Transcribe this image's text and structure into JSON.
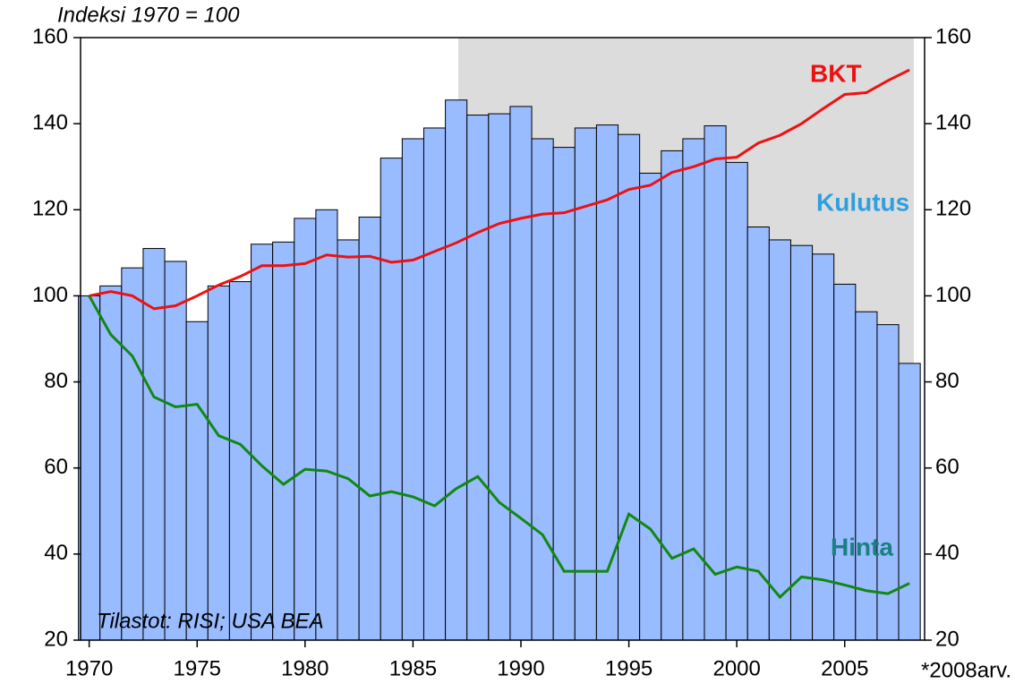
{
  "chart_data": {
    "type": "combo",
    "title": "Indeksi 1970 = 100",
    "source": "Tilastot: RISI; USA BEA",
    "x_note": "*2008arv.",
    "x": [
      1970,
      1971,
      1972,
      1973,
      1974,
      1975,
      1976,
      1977,
      1978,
      1979,
      1980,
      1981,
      1982,
      1983,
      1984,
      1985,
      1986,
      1987,
      1988,
      1989,
      1990,
      1991,
      1992,
      1993,
      1994,
      1995,
      1996,
      1997,
      1998,
      1999,
      2000,
      2001,
      2002,
      2003,
      2004,
      2005,
      2006,
      2007,
      2008
    ],
    "series": [
      {
        "name": "Kulutus",
        "type": "bar",
        "color": "#99bbff",
        "label_color": "#2ea0e0",
        "values": [
          100,
          102.3,
          106.5,
          111,
          108,
          94,
          102.3,
          103.3,
          112,
          112.5,
          118,
          120,
          113,
          118.3,
          132,
          136.5,
          139,
          145.5,
          142,
          142.3,
          144,
          136.5,
          134.5,
          139,
          139.7,
          137.5,
          128.5,
          133.7,
          136.5,
          139.5,
          131,
          116,
          113,
          111.7,
          109.7,
          102.7,
          96.3,
          93.3,
          84.3
        ]
      },
      {
        "name": "BKT",
        "type": "line",
        "color": "#ee1111",
        "label_color": "#ee1111",
        "values": [
          100,
          101,
          100,
          97,
          97.7,
          100,
          102.5,
          104.5,
          107,
          107,
          107.5,
          109.5,
          109,
          109.2,
          107.8,
          108.3,
          110.3,
          112.3,
          114.7,
          116.8,
          118,
          119,
          119.3,
          120.8,
          122.3,
          124.7,
          125.7,
          128.7,
          130,
          131.8,
          132.2,
          135.5,
          137.3,
          140,
          143.5,
          146.8,
          147.2,
          150,
          152.5
        ]
      },
      {
        "name": "Hinta",
        "type": "line",
        "color": "#118811",
        "label_color": "#1a8080",
        "values": [
          100,
          91,
          86,
          76.5,
          74.2,
          74.8,
          67.5,
          65.5,
          60.5,
          56.2,
          59.7,
          59.3,
          57.5,
          53.5,
          54.5,
          53.3,
          51.2,
          55.2,
          58,
          52,
          48.3,
          44.5,
          36,
          36,
          36,
          49.3,
          45.8,
          39,
          41.2,
          35.3,
          37,
          36,
          30,
          34.7,
          34,
          32.8,
          31.5,
          30.8,
          33.2
        ]
      }
    ],
    "shaded_range": [
      1987.1,
      2008.2
    ],
    "shade_color": "#dcdcdc",
    "xlim": [
      1969.6,
      2008.7
    ],
    "xticks": [
      1970,
      1975,
      1980,
      1985,
      1990,
      1995,
      2000,
      2005
    ],
    "ylim": [
      20,
      160
    ],
    "yticks": [
      20,
      40,
      60,
      80,
      100,
      120,
      140,
      160
    ],
    "y2lim": [
      20,
      160
    ],
    "y2ticks": [
      20,
      40,
      60,
      80,
      100,
      120,
      140,
      160
    ]
  }
}
